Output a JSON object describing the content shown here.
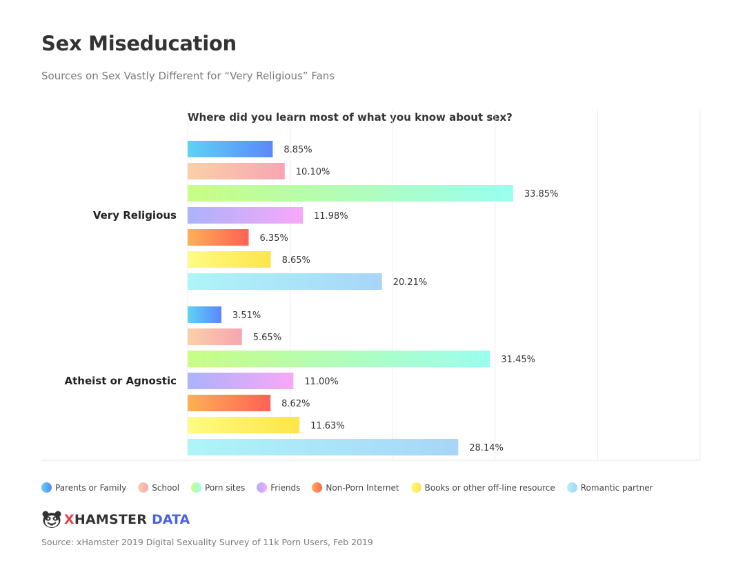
{
  "header": {
    "title": "Sex Miseducation",
    "subtitle": "Sources on Sex Vastly Different for “Very Religious” Fans"
  },
  "chart_data": {
    "type": "bar",
    "orientation": "horizontal",
    "title": "Where did you learn most of what you know about sex?",
    "categories": [
      "Very Religious",
      "Atheist or Agnostic"
    ],
    "series": [
      {
        "name": "Parents or Family",
        "values": [
          8.85,
          3.51
        ],
        "labels": [
          "8.85%",
          "3.51%"
        ],
        "colors": [
          "#5ed3f3",
          "#5b87fb"
        ]
      },
      {
        "name": "School",
        "values": [
          10.1,
          5.65
        ],
        "labels": [
          "10.10%",
          "5.65%"
        ],
        "colors": [
          "#fad0a8",
          "#f8a5b2"
        ]
      },
      {
        "name": "Porn sites",
        "values": [
          33.85,
          31.45
        ],
        "labels": [
          "33.85%",
          "31.45%"
        ],
        "colors": [
          "#c9fd84",
          "#9afeef"
        ]
      },
      {
        "name": "Friends",
        "values": [
          11.98,
          11.0
        ],
        "labels": [
          "11.98%",
          "11.00%"
        ],
        "colors": [
          "#abb2fb",
          "#f8a8f8"
        ]
      },
      {
        "name": "Non-Porn Internet",
        "values": [
          6.35,
          8.62
        ],
        "labels": [
          "6.35%",
          "8.62%"
        ],
        "colors": [
          "#feb056",
          "#ff6254"
        ]
      },
      {
        "name": "Books or other off-line resource",
        "values": [
          8.65,
          11.63
        ],
        "labels": [
          "8.65%",
          "11.63%"
        ],
        "colors": [
          "#fefb84",
          "#fde54a"
        ]
      },
      {
        "name": "Romantic partner",
        "values": [
          20.21,
          28.14
        ],
        "labels": [
          "20.21%",
          "28.14%"
        ],
        "colors": [
          "#aef5f8",
          "#a8d5f8"
        ]
      }
    ],
    "xlim": [
      0,
      53.3
    ],
    "grid": true,
    "legend_position": "bottom-left"
  },
  "footer": {
    "logo_x": "X",
    "logo_hamster": "HAMSTER",
    "logo_data": "DATA",
    "source": "Source: xHamster 2019 Digital Sexuality Survey of 11k Porn Users, Feb 2019"
  }
}
